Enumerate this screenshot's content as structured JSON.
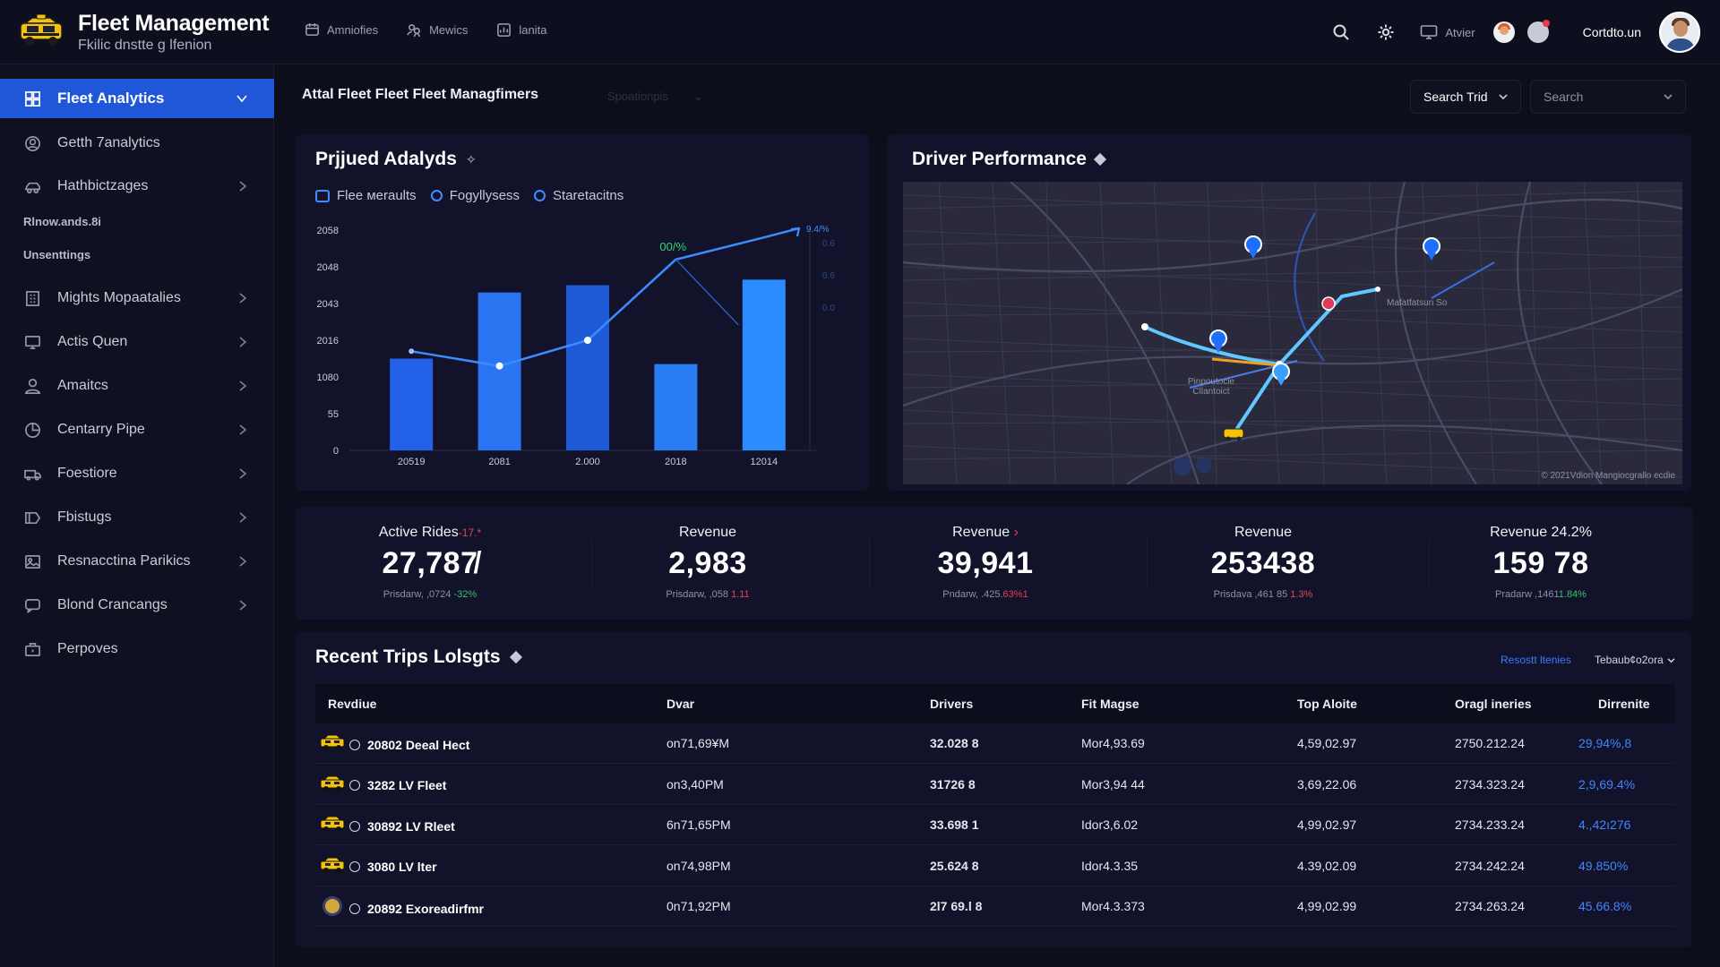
{
  "header": {
    "title": "Fleet Management",
    "subtitle": "Fkilic dnstte g lfenion",
    "nav": [
      {
        "label": "Amniofies",
        "icon": "calendar-icon"
      },
      {
        "label": "Mewics",
        "icon": "people-icon"
      },
      {
        "label": "lanita",
        "icon": "report-icon"
      }
    ],
    "monitor_label": "Atvier",
    "user_name": "Cortdto.un"
  },
  "sidebar": {
    "items": [
      {
        "label": "Fleet Analytics",
        "icon": "grid-icon",
        "active": true
      },
      {
        "label": "Getth 7аnalytics",
        "icon": "account-icon"
      },
      {
        "label": "Hathbictzages",
        "icon": "vehicle-icon"
      },
      {
        "label": "Mights Mopaatalies",
        "icon": "building-icon"
      },
      {
        "label": "Actis Quen",
        "icon": "monitor-icon"
      },
      {
        "label": "Amaitcs",
        "icon": "user-icon"
      },
      {
        "label": "Centarry Pipe",
        "icon": "pie-icon"
      },
      {
        "label": "Foestiore",
        "icon": "truck-icon"
      },
      {
        "label": "Fbistugs",
        "icon": "tag-icon"
      },
      {
        "label": "Resnacctina Parikics",
        "icon": "image-icon"
      },
      {
        "label": "Blond Crancangs",
        "icon": "chat-icon"
      },
      {
        "label": "Perpoves",
        "icon": "briefcase-icon"
      }
    ],
    "section_labels": [
      "Rlnow.ands.8i",
      "Unsenttings"
    ]
  },
  "page": {
    "title": "Attal Fleet Fleet Fleet Managfimers",
    "ghost_label": "Spoationpis",
    "filter_label": "Search Trid",
    "search_placeholder": "Search"
  },
  "chart_panel": {
    "title": "Prjjued Adalyds",
    "legend": [
      "Flee мeraults",
      "Fogyllysess",
      "Staretacitns"
    ]
  },
  "chart_data": {
    "type": "bar",
    "categories": [
      "20519",
      "2081",
      "2.000",
      "2018",
      "12014"
    ],
    "yticks": [
      "2058",
      "2048",
      "2043",
      "2016",
      "1080",
      "55",
      "0"
    ],
    "series": [
      {
        "type": "bar",
        "values": [
          25,
          43,
          45,
          23.5,
          46.5
        ]
      },
      {
        "type": "line",
        "values": [
          27,
          23,
          30,
          52,
          58
        ]
      }
    ],
    "line_label": "00/%",
    "end_label": "9.4/%",
    "right_ticks": [
      "0.6",
      "0.6",
      "0.0"
    ],
    "ylim": [
      0,
      60
    ],
    "colors": {
      "bar": "#1f6fff",
      "line": "#3b8dff",
      "line_label": "#2bd67a"
    }
  },
  "map_panel": {
    "title": "Driver Performance",
    "labels": [
      "Pinpoutocle Cllantoict",
      "Mafatfatsun So"
    ],
    "copyright": "© 2021Vdion  Mangiocgrallo ecdie"
  },
  "kpis": [
    {
      "label": "Active Rides",
      "accent": "-17.*",
      "value": "27,787̸",
      "sub": "Prisdarw, ,0724",
      "delta": "-32%",
      "trend": "up"
    },
    {
      "label": "Revenue",
      "accent": "",
      "value": "2,983",
      "sub": "Prisdarw, ,058",
      "delta": "1.11",
      "trend": "down"
    },
    {
      "label": "Revenue",
      "accent": "›",
      "value": "39,941",
      "sub": "Pndarw, .425",
      "delta": ".63%1",
      "trend": "down"
    },
    {
      "label": "Revenue",
      "accent": "",
      "value": "253438",
      "sub": "Prisdava ,461 85",
      "delta": "1.3%",
      "trend": "down"
    },
    {
      "label": "Revenue 24.2%",
      "accent": "",
      "value": "159 78",
      "sub": "Pradarw ,1461",
      "delta": "1.84%",
      "trend": "up"
    }
  ],
  "table": {
    "title": "Recent Trips Lolsgts",
    "link": "Resostt ltenies",
    "sort_label": "Tebaub¢o2ora",
    "columns": [
      "Revdiue",
      "Dvar",
      "Drivers",
      "Fit Magse",
      "Top Aloite",
      "Oragl ineries",
      "Dirrenite"
    ],
    "rows": [
      {
        "icon": "taxi-icon",
        "name": "20802 Deeal Hect",
        "dvar": "on71,69¥M",
        "drivers": "32.028 8",
        "magse": "Mor4,93.69",
        "top": "4,59,02.97",
        "queries": "2750.212.24",
        "diff": "29,94%,8"
      },
      {
        "icon": "taxi-icon",
        "name": "3282 LV Fleet",
        "dvar": "on3,40PM",
        "drivers": "31726 8",
        "magse": "Mor3,94 44",
        "top": "3,69,22.06",
        "queries": "2734.323.24",
        "diff": "2,9,69.4%"
      },
      {
        "icon": "taxi-icon",
        "name": "30892 LV Rleet",
        "dvar": "6n71,65PM",
        "drivers": "33.69‏1 8",
        "magse": "Idor3,6.02",
        "top": "4,99,02.97",
        "queries": "2734.233.24",
        "diff": "4.,42ı276"
      },
      {
        "icon": "taxi-icon",
        "name": "3080 LV lter",
        "dvar": "on74,98PM",
        "drivers": "25.624 8",
        "magse": "Idor4.3.35",
        "top": "4.39,02.09",
        "queries": "2734.242.24",
        "diff": "49.850%"
      },
      {
        "icon": "coin-icon",
        "name": "20892 Exoreadirfmr",
        "dvar": "0n71,92PM",
        "drivers": "2l7 69.l 8",
        "magse": "Mor4.3.373",
        "top": "4,99,02.99",
        "queries": "2734.263.24",
        "diff": "45.66.8%"
      }
    ]
  }
}
